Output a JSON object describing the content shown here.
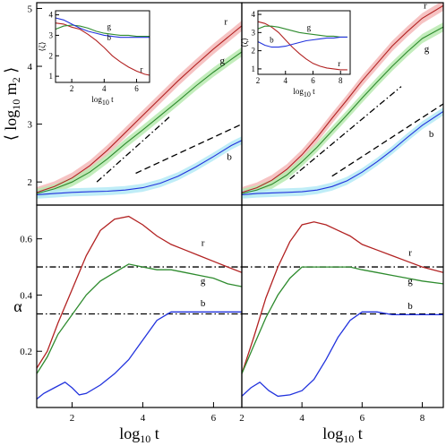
{
  "chart_data": [
    {
      "type": "line",
      "panel": "top-left",
      "ylabel": "⟨ log10 m2 ⟩",
      "xlim": [
        1,
        6.8
      ],
      "ylim": [
        1.6,
        5.1
      ],
      "yticks": [
        "2",
        "3",
        "4",
        "5"
      ],
      "colors": {
        "r": "#b22222",
        "g": "#2e8b2e",
        "b": "#2233dd"
      },
      "series": [
        {
          "name": "r",
          "x": [
            1,
            1.5,
            2,
            2.5,
            3,
            3.5,
            4,
            4.5,
            5,
            5.5,
            6,
            6.5,
            6.8
          ],
          "y": [
            1.82,
            1.92,
            2.07,
            2.28,
            2.55,
            2.85,
            3.15,
            3.45,
            3.75,
            4.03,
            4.3,
            4.55,
            4.7
          ]
        },
        {
          "name": "g",
          "x": [
            1,
            1.5,
            2,
            2.5,
            3,
            3.5,
            4,
            4.5,
            5,
            5.5,
            6,
            6.5,
            6.8
          ],
          "y": [
            1.8,
            1.88,
            2.0,
            2.17,
            2.4,
            2.66,
            2.9,
            3.15,
            3.4,
            3.66,
            3.9,
            4.12,
            4.25
          ]
        },
        {
          "name": "b",
          "x": [
            1,
            1.5,
            2,
            2.5,
            3,
            3.5,
            4,
            4.5,
            5,
            5.5,
            6,
            6.5,
            6.8
          ],
          "y": [
            1.78,
            1.8,
            1.82,
            1.83,
            1.84,
            1.86,
            1.9,
            1.98,
            2.1,
            2.26,
            2.44,
            2.63,
            2.72
          ]
        }
      ],
      "reference_lines": [
        {
          "style": "dash-dot",
          "x": [
            2.7,
            4.8
          ],
          "y": [
            2.0,
            3.15
          ]
        },
        {
          "style": "dashed",
          "x": [
            3.8,
            6.8
          ],
          "y": [
            2.15,
            3.0
          ]
        }
      ],
      "inset": {
        "xlabel": "log10 t",
        "ylabel": "⟨ζ⟩",
        "xticks": [
          "2",
          "4",
          "6"
        ],
        "yticks": [
          "1",
          "2",
          "3",
          "4"
        ],
        "xlim": [
          1,
          6.8
        ],
        "ylim": [
          0.7,
          4.2
        ],
        "series": [
          {
            "name": "r",
            "x": [
              1,
              1.5,
              2,
              2.5,
              3,
              3.5,
              4,
              4.5,
              5,
              5.5,
              6,
              6.5,
              6.8
            ],
            "y": [
              3.6,
              3.55,
              3.4,
              3.3,
              3.05,
              2.75,
              2.4,
              2.0,
              1.7,
              1.45,
              1.25,
              1.1,
              1.05
            ]
          },
          {
            "name": "g",
            "x": [
              1,
              1.5,
              2,
              2.5,
              3,
              3.5,
              4,
              4.5,
              5,
              5.5,
              6,
              6.5,
              6.8
            ],
            "y": [
              3.3,
              3.45,
              3.5,
              3.45,
              3.35,
              3.2,
              3.1,
              3.05,
              3.0,
              3.0,
              2.95,
              2.95,
              2.95
            ]
          },
          {
            "name": "b",
            "x": [
              1,
              1.5,
              2,
              2.5,
              3,
              3.5,
              4,
              4.5,
              5,
              5.5,
              6,
              6.5,
              6.8
            ],
            "y": [
              3.85,
              3.75,
              3.55,
              3.35,
              3.2,
              3.1,
              3.0,
              2.95,
              2.9,
              2.9,
              2.9,
              2.9,
              2.9
            ]
          }
        ]
      }
    },
    {
      "type": "line",
      "panel": "top-right",
      "xlim": [
        2,
        8.7
      ],
      "ylim": [
        1.6,
        5.1
      ],
      "series": [
        {
          "name": "r",
          "x": [
            2,
            2.5,
            3,
            3.5,
            4,
            4.5,
            5,
            5.5,
            6,
            6.5,
            7,
            7.5,
            8,
            8.7
          ],
          "y": [
            1.82,
            1.9,
            2.03,
            2.22,
            2.47,
            2.77,
            3.1,
            3.42,
            3.75,
            4.05,
            4.35,
            4.6,
            4.83,
            5.05
          ]
        },
        {
          "name": "g",
          "x": [
            2,
            2.5,
            3,
            3.5,
            4,
            4.5,
            5,
            5.5,
            6,
            6.5,
            7,
            7.5,
            8,
            8.7
          ],
          "y": [
            1.8,
            1.86,
            1.96,
            2.12,
            2.35,
            2.6,
            2.88,
            3.16,
            3.45,
            3.73,
            4.0,
            4.25,
            4.48,
            4.68
          ]
        },
        {
          "name": "b",
          "x": [
            2,
            2.5,
            3,
            3.5,
            4,
            4.5,
            5,
            5.5,
            6,
            6.5,
            7,
            7.5,
            8,
            8.7
          ],
          "y": [
            1.78,
            1.8,
            1.81,
            1.82,
            1.83,
            1.86,
            1.92,
            2.02,
            2.17,
            2.35,
            2.55,
            2.77,
            2.98,
            3.22
          ]
        }
      ],
      "reference_lines": [
        {
          "style": "dash-dot",
          "x": [
            3.6,
            7.3
          ],
          "y": [
            2.05,
            3.65
          ]
        },
        {
          "style": "dashed",
          "x": [
            5.0,
            8.7
          ],
          "y": [
            2.1,
            3.35
          ]
        }
      ],
      "inset": {
        "xlabel": "log10 t",
        "ylabel": "⟨ζ⟩",
        "xticks": [
          "2",
          "4",
          "6",
          "8"
        ],
        "yticks": [
          "1",
          "2",
          "3",
          "4"
        ],
        "xlim": [
          2,
          8.7
        ],
        "ylim": [
          0.7,
          4.2
        ],
        "series": [
          {
            "name": "r",
            "x": [
              2,
              2.5,
              3,
              3.5,
              4,
              4.5,
              5,
              5.5,
              6,
              6.5,
              7,
              7.5,
              8,
              8.5
            ],
            "y": [
              3.6,
              3.5,
              3.3,
              3.0,
              2.6,
              2.2,
              1.85,
              1.55,
              1.3,
              1.15,
              1.05,
              1.0,
              0.95,
              0.95
            ]
          },
          {
            "name": "g",
            "x": [
              2,
              2.5,
              3,
              3.5,
              4,
              4.5,
              5,
              5.5,
              6,
              6.5,
              7,
              7.5,
              8,
              8.5
            ],
            "y": [
              3.2,
              3.35,
              3.35,
              3.3,
              3.2,
              3.1,
              3.0,
              2.95,
              2.9,
              2.85,
              2.8,
              2.8,
              2.75,
              2.75
            ]
          },
          {
            "name": "b",
            "x": [
              2,
              2.5,
              3,
              3.5,
              4,
              4.5,
              5,
              5.5,
              6,
              6.5,
              7,
              7.5,
              8,
              8.5
            ],
            "y": [
              2.5,
              2.3,
              2.2,
              2.2,
              2.25,
              2.35,
              2.45,
              2.55,
              2.6,
              2.65,
              2.7,
              2.7,
              2.75,
              2.75
            ]
          }
        ]
      }
    },
    {
      "type": "line",
      "panel": "bottom-left",
      "ylabel": "α",
      "xlabel": "log10 t",
      "xlim": [
        1,
        6.8
      ],
      "ylim": [
        0,
        0.72
      ],
      "xticks": [
        "2",
        "4",
        "6"
      ],
      "yticks": [
        "0.2",
        "0.4",
        "0.6"
      ],
      "series": [
        {
          "name": "r",
          "x": [
            1,
            1.3,
            1.6,
            2,
            2.4,
            2.8,
            3.2,
            3.6,
            4,
            4.4,
            4.8,
            5.2,
            5.6,
            6,
            6.4,
            6.8
          ],
          "y": [
            0.14,
            0.2,
            0.3,
            0.42,
            0.54,
            0.63,
            0.67,
            0.68,
            0.65,
            0.61,
            0.58,
            0.56,
            0.54,
            0.52,
            0.5,
            0.48
          ]
        },
        {
          "name": "g",
          "x": [
            1,
            1.3,
            1.6,
            2,
            2.4,
            2.8,
            3.2,
            3.6,
            4,
            4.4,
            4.8,
            5.2,
            5.6,
            6,
            6.4,
            6.8
          ],
          "y": [
            0.12,
            0.18,
            0.26,
            0.33,
            0.4,
            0.45,
            0.48,
            0.51,
            0.5,
            0.49,
            0.49,
            0.48,
            0.47,
            0.46,
            0.44,
            0.43
          ]
        },
        {
          "name": "b",
          "x": [
            1,
            1.2,
            1.5,
            1.8,
            2.0,
            2.2,
            2.4,
            2.8,
            3.2,
            3.6,
            4.0,
            4.4,
            4.8,
            5.2,
            5.6,
            6.0,
            6.4,
            6.8
          ],
          "y": [
            0.03,
            0.05,
            0.07,
            0.09,
            0.07,
            0.045,
            0.05,
            0.08,
            0.12,
            0.17,
            0.24,
            0.31,
            0.34,
            0.34,
            0.34,
            0.34,
            0.34,
            0.34
          ]
        }
      ],
      "reference_lines": [
        {
          "style": "dash-dot",
          "y": 0.5
        },
        {
          "style": "dash-dot",
          "y": 0.333
        }
      ]
    },
    {
      "type": "line",
      "panel": "bottom-right",
      "xlabel": "log10 t",
      "xlim": [
        2,
        8.7
      ],
      "ylim": [
        0,
        0.72
      ],
      "xticks": [
        "2",
        "4",
        "6",
        "8"
      ],
      "series": [
        {
          "name": "r",
          "x": [
            2,
            2.4,
            2.8,
            3.2,
            3.6,
            4,
            4.4,
            4.8,
            5.2,
            5.6,
            6,
            6.5,
            7,
            7.5,
            8,
            8.7
          ],
          "y": [
            0.12,
            0.25,
            0.39,
            0.5,
            0.59,
            0.65,
            0.66,
            0.65,
            0.63,
            0.61,
            0.58,
            0.56,
            0.54,
            0.52,
            0.5,
            0.48
          ]
        },
        {
          "name": "g",
          "x": [
            2,
            2.4,
            2.8,
            3.2,
            3.6,
            4,
            4.4,
            4.8,
            5.2,
            5.6,
            6,
            6.5,
            7,
            7.5,
            8,
            8.7
          ],
          "y": [
            0.12,
            0.22,
            0.32,
            0.4,
            0.46,
            0.5,
            0.5,
            0.5,
            0.5,
            0.5,
            0.49,
            0.48,
            0.47,
            0.46,
            0.45,
            0.44
          ]
        },
        {
          "name": "b",
          "x": [
            2,
            2.3,
            2.6,
            2.9,
            3.2,
            3.6,
            4,
            4.4,
            4.8,
            5.2,
            5.6,
            6,
            6.5,
            7,
            7.5,
            8,
            8.7
          ],
          "y": [
            0.04,
            0.07,
            0.09,
            0.06,
            0.04,
            0.045,
            0.06,
            0.1,
            0.17,
            0.25,
            0.31,
            0.34,
            0.34,
            0.33,
            0.33,
            0.33,
            0.33
          ]
        }
      ],
      "reference_lines": [
        {
          "style": "dash-dot",
          "y": 0.5
        },
        {
          "style": "dashed",
          "y": 0.333
        }
      ]
    }
  ],
  "colors": {
    "r": "#b22222",
    "g": "#2e8b2e",
    "b": "#2233dd",
    "band_r": "#f4b8b8",
    "band_g": "#b9eab0",
    "band_b": "#b4eaf6"
  }
}
